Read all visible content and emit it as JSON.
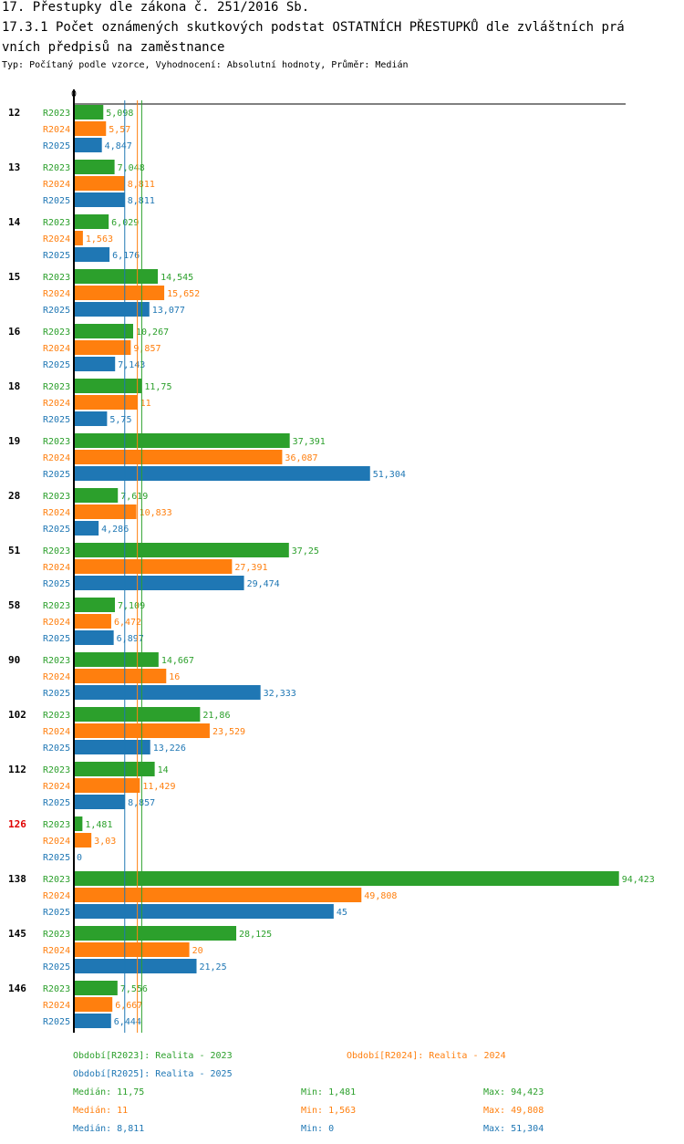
{
  "header": {
    "title1": "17. Přestupky dle zákona č. 251/2016 Sb.",
    "title2a": "17.3.1 Počet oznámených skutkových podstat OSTATNÍCH PŘESTUPKŮ dle zvláštních prá",
    "title2b": "vních předpisů na zaměstnance",
    "subtitle": "Typ: Počítaný podle vzorce, Vyhodnocení: Absolutní hodnoty, Průměr: Medián"
  },
  "chart_data": {
    "type": "bar",
    "orientation": "horizontal",
    "x_zero_label": "0",
    "categories": [
      "12",
      "13",
      "14",
      "15",
      "16",
      "18",
      "19",
      "28",
      "51",
      "58",
      "90",
      "102",
      "112",
      "126",
      "138",
      "145",
      "146"
    ],
    "highlight_category": "126",
    "series": [
      {
        "name": "R2023",
        "color": "#2ca02c",
        "values": [
          5.098,
          7.048,
          6.029,
          14.545,
          10.267,
          11.75,
          37.391,
          7.619,
          37.25,
          7.109,
          14.667,
          21.86,
          14,
          1.481,
          94.423,
          28.125,
          7.556
        ],
        "labels": [
          "5,098",
          "7,048",
          "6,029",
          "14,545",
          "10,267",
          "11,75",
          "37,391",
          "7,619",
          "37,25",
          "7,109",
          "14,667",
          "21,86",
          "14",
          "1,481",
          "94,423",
          "28,125",
          "7,556"
        ]
      },
      {
        "name": "R2024",
        "color": "#ff7f0e",
        "values": [
          5.57,
          8.811,
          1.563,
          15.652,
          9.857,
          11,
          36.087,
          10.833,
          27.391,
          6.472,
          16,
          23.529,
          11.429,
          3.03,
          49.808,
          20,
          6.667
        ],
        "labels": [
          "5,57",
          "8,811",
          "1,563",
          "15,652",
          "9,857",
          "11",
          "36,087",
          "10,833",
          "27,391",
          "6,472",
          "16",
          "23,529",
          "11,429",
          "3,03",
          "49,808",
          "20",
          "6,667"
        ]
      },
      {
        "name": "R2025",
        "color": "#1f77b4",
        "values": [
          4.847,
          8.811,
          6.176,
          13.077,
          7.143,
          5.75,
          51.304,
          4.286,
          29.474,
          6.897,
          32.333,
          13.226,
          8.857,
          0,
          45,
          21.25,
          6.444
        ],
        "labels": [
          "4,847",
          "8,811",
          "6,176",
          "13,077",
          "7,143",
          "5,75",
          "51,304",
          "4,286",
          "29,474",
          "6,897",
          "32,333",
          "13,226",
          "8,857",
          "0",
          "45",
          "21,25",
          "6,444"
        ]
      }
    ],
    "median_lines": [
      {
        "series": "R2023",
        "value": 11.75
      },
      {
        "series": "R2024",
        "value": 11
      },
      {
        "series": "R2025",
        "value": 8.811
      }
    ]
  },
  "legend": {
    "items": [
      {
        "text": "Období[R2023]: Realita - 2023",
        "color": "#2ca02c"
      },
      {
        "text": "Období[R2024]: Realita - 2024",
        "color": "#ff7f0e"
      },
      {
        "text": "Období[R2025]: Realita - 2025",
        "color": "#1f77b4"
      }
    ],
    "stats": [
      {
        "median": "Medián: 11,75",
        "min": "Min: 1,481",
        "max": "Max: 94,423",
        "color": "#2ca02c"
      },
      {
        "median": "Medián: 11",
        "min": "Min: 1,563",
        "max": "Max: 49,808",
        "color": "#ff7f0e"
      },
      {
        "median": "Medián: 8,811",
        "min": "Min: 0",
        "max": "Max: 51,304",
        "color": "#1f77b4"
      }
    ]
  }
}
